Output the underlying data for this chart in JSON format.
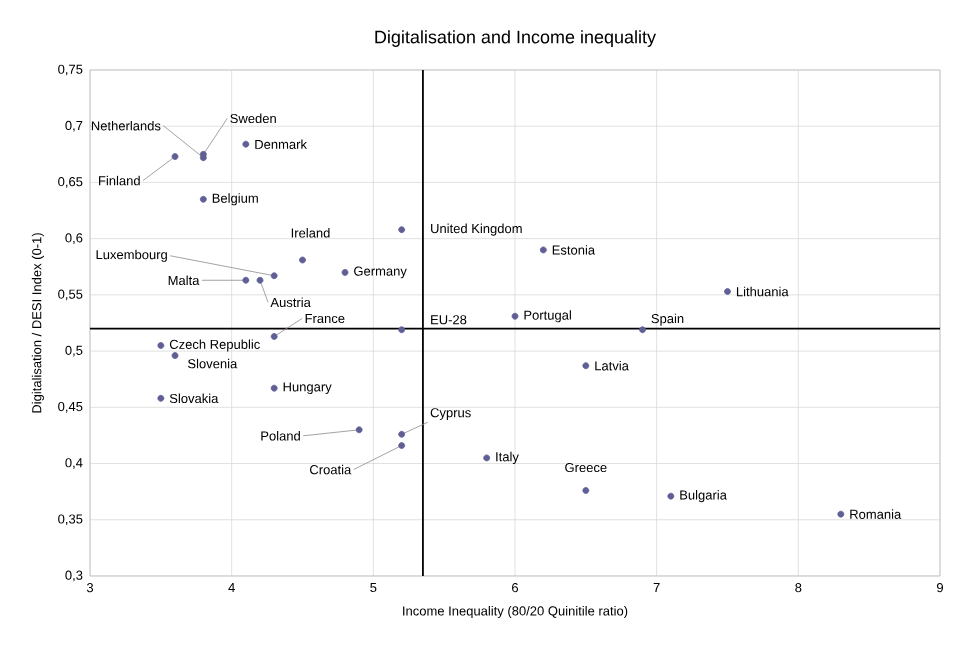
{
  "chart_data": {
    "type": "scatter",
    "title": "Digitalisation and Income inequality",
    "xlabel": "Income Inequality (80/20 Quinitile ratio)",
    "ylabel": "Digitalisation / DESI Index (0-1)",
    "x": [
      3.8,
      3.8,
      3.6,
      4.1,
      3.8,
      5.2,
      6.2,
      4.5,
      4.3,
      4.1,
      4.2,
      4.8,
      7.5,
      6.0,
      5.2,
      6.9,
      4.3,
      3.5,
      3.6,
      6.5,
      4.3,
      3.5,
      4.9,
      5.2,
      5.2,
      5.8,
      6.5,
      7.1,
      8.3
    ],
    "values": [
      0.672,
      0.675,
      0.673,
      0.684,
      0.635,
      0.608,
      0.59,
      0.581,
      0.567,
      0.563,
      0.563,
      0.57,
      0.553,
      0.531,
      0.519,
      0.519,
      0.513,
      0.505,
      0.496,
      0.487,
      0.467,
      0.458,
      0.43,
      0.426,
      0.416,
      0.405,
      0.376,
      0.371,
      0.355
    ],
    "color": "#5f5f96",
    "marker": "circle",
    "grid": true,
    "xlim": [
      3,
      9
    ],
    "xticks": [
      3,
      4,
      5,
      6,
      7,
      8,
      9
    ],
    "ylim": [
      0.3,
      0.75
    ],
    "yticks": [
      {
        "value": 0.3,
        "label": "0,3"
      },
      {
        "value": 0.35,
        "label": "0,35"
      },
      {
        "value": 0.4,
        "label": "0,4"
      },
      {
        "value": 0.45,
        "label": "0,45"
      },
      {
        "value": 0.5,
        "label": "0,5"
      },
      {
        "value": 0.55,
        "label": "0,55"
      },
      {
        "value": 0.6,
        "label": "0,6"
      },
      {
        "value": 0.65,
        "label": "0,65"
      },
      {
        "value": 0.7,
        "label": "0,7"
      },
      {
        "value": 0.75,
        "label": "0,75"
      }
    ],
    "ref_lines": [
      {
        "axis": "y",
        "value": 0.52,
        "color": "#000000"
      },
      {
        "axis": "x",
        "value": 5.35,
        "color": "#000000"
      }
    ],
    "annotations": [
      {
        "text": "Netherlands",
        "x": 3.8,
        "y": 0.672
      },
      {
        "text": "Sweden",
        "x": 3.8,
        "y": 0.675
      },
      {
        "text": "Finland",
        "x": 3.6,
        "y": 0.673
      },
      {
        "text": "Denmark",
        "x": 4.1,
        "y": 0.684
      },
      {
        "text": "Belgium",
        "x": 3.8,
        "y": 0.635
      },
      {
        "text": "United Kingdom",
        "x": 5.2,
        "y": 0.608
      },
      {
        "text": "Estonia",
        "x": 6.2,
        "y": 0.59
      },
      {
        "text": "Ireland",
        "x": 4.5,
        "y": 0.581
      },
      {
        "text": "Luxembourg",
        "x": 4.3,
        "y": 0.567
      },
      {
        "text": "Malta",
        "x": 4.1,
        "y": 0.563
      },
      {
        "text": "Austria",
        "x": 4.2,
        "y": 0.563
      },
      {
        "text": "Germany",
        "x": 4.8,
        "y": 0.57
      },
      {
        "text": "Lithuania",
        "x": 7.5,
        "y": 0.553
      },
      {
        "text": "Portugal",
        "x": 6.0,
        "y": 0.531
      },
      {
        "text": "EU-28",
        "x": 5.2,
        "y": 0.519
      },
      {
        "text": "Spain",
        "x": 6.9,
        "y": 0.519
      },
      {
        "text": "France",
        "x": 4.3,
        "y": 0.513
      },
      {
        "text": "Czech Republic",
        "x": 3.5,
        "y": 0.505
      },
      {
        "text": "Slovenia",
        "x": 3.6,
        "y": 0.496
      },
      {
        "text": "Latvia",
        "x": 6.5,
        "y": 0.487
      },
      {
        "text": "Hungary",
        "x": 4.3,
        "y": 0.467
      },
      {
        "text": "Slovakia",
        "x": 3.5,
        "y": 0.458
      },
      {
        "text": "Poland",
        "x": 4.9,
        "y": 0.43
      },
      {
        "text": "Cyprus",
        "x": 5.2,
        "y": 0.426
      },
      {
        "text": "Croatia",
        "x": 5.2,
        "y": 0.416
      },
      {
        "text": "Italy",
        "x": 5.8,
        "y": 0.405
      },
      {
        "text": "Greece",
        "x": 6.5,
        "y": 0.376
      },
      {
        "text": "Bulgaria",
        "x": 7.1,
        "y": 0.371
      },
      {
        "text": "Romania",
        "x": 8.3,
        "y": 0.355
      }
    ]
  }
}
